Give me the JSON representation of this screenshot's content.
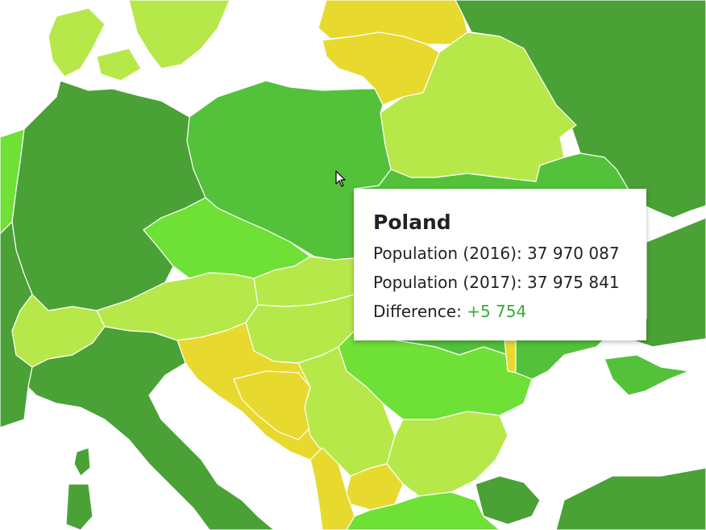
{
  "colors": {
    "background": "#ffffff",
    "dark_green": "#4aa136",
    "mid_green": "#53c23a",
    "bright_green": "#6ee036",
    "light_green": "#b7e84a",
    "yellow": "#e8d92f"
  },
  "tooltip": {
    "country": "Poland",
    "population_2016_label": "Population (2016):",
    "population_2016_value": "37 970 087",
    "population_2017_label": "Population (2017):",
    "population_2017_value": "37 975 841",
    "difference_label": "Difference:",
    "difference_value": "+5 754",
    "difference_color": "#2fb12f"
  },
  "cursor_icon": "arrow-cursor-icon"
}
